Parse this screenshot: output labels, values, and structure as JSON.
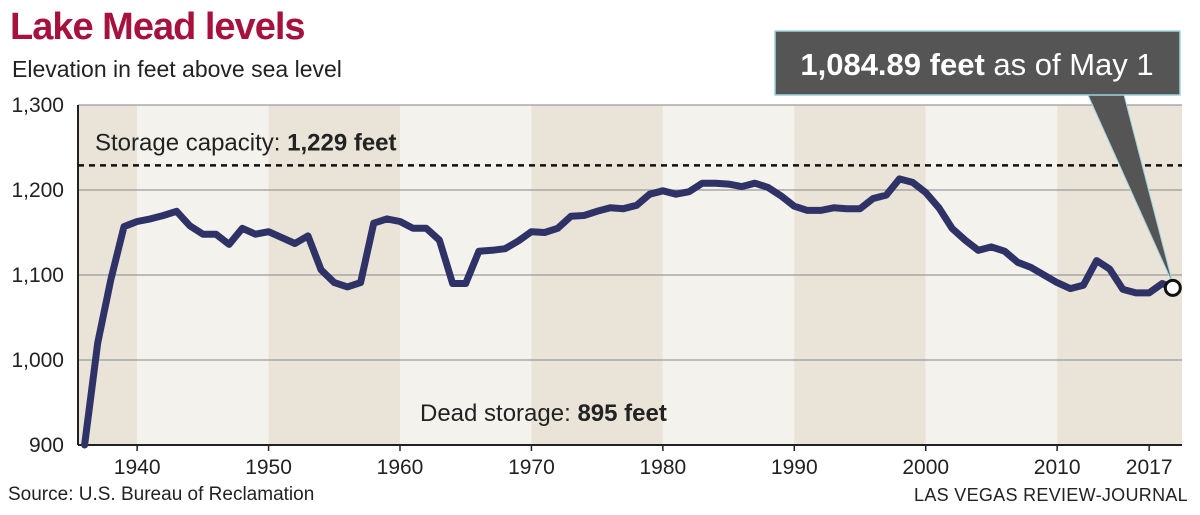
{
  "title": "Lake Mead levels",
  "subtitle": "Elevation in feet above sea level",
  "source": "Source: U.S. Bureau of Reclamation",
  "credit": "LAS VEGAS REVIEW-JOURNAL",
  "colors": {
    "title": "#a6123d",
    "line": "#2e3266",
    "band_light": "#f4f2ec",
    "band_dark": "#e9e4d7",
    "callout": "#555555"
  },
  "chart_data": {
    "type": "line",
    "title": "Lake Mead levels",
    "subtitle": "Elevation in feet above sea level",
    "xlabel": "",
    "ylabel": "",
    "xlim": [
      1935.5,
      2019.5
    ],
    "ylim": [
      900,
      1300
    ],
    "x_ticks": [
      1940,
      1950,
      1960,
      1970,
      1980,
      1990,
      2000,
      2010,
      2017
    ],
    "y_ticks": [
      900,
      1000,
      1100,
      1200,
      1300
    ],
    "x_tick_labels": [
      "1940",
      "1950",
      "1960",
      "1970",
      "1980",
      "1990",
      "2000",
      "2010",
      "2017"
    ],
    "y_tick_labels": [
      "900",
      "1,000",
      "1,100",
      "1,200",
      "1,300"
    ],
    "grid": true,
    "series": [
      {
        "x": [
          1936,
          1937,
          1938,
          1939,
          1940,
          1941,
          1942,
          1943,
          1944,
          1945,
          1946,
          1947,
          1948,
          1949,
          1950,
          1951,
          1952,
          1953,
          1954,
          1955,
          1956,
          1957,
          1958,
          1959,
          1960,
          1961,
          1962,
          1963,
          1964,
          1965,
          1966,
          1967,
          1968,
          1969,
          1970,
          1971,
          1972,
          1973,
          1974,
          1975,
          1976,
          1977,
          1978,
          1979,
          1980,
          1981,
          1982,
          1983,
          1984,
          1985,
          1986,
          1987,
          1988,
          1989,
          1990,
          1991,
          1992,
          1993,
          1994,
          1995,
          1996,
          1997,
          1998,
          1999,
          2000,
          2001,
          2002,
          2003,
          2004,
          2005,
          2006,
          2007,
          2008,
          2009,
          2010,
          2011,
          2012,
          2013,
          2014,
          2015,
          2016,
          2017,
          2018
        ],
        "y": [
          898,
          1020,
          1095,
          1157,
          1163,
          1166,
          1170,
          1175,
          1158,
          1148,
          1148,
          1136,
          1155,
          1148,
          1151,
          1144,
          1137,
          1146,
          1106,
          1091,
          1086,
          1091,
          1161,
          1166,
          1163,
          1155,
          1155,
          1141,
          1090,
          1090,
          1128,
          1129,
          1131,
          1140,
          1151,
          1150,
          1155,
          1169,
          1170,
          1175,
          1179,
          1178,
          1182,
          1195,
          1199,
          1195,
          1198,
          1208,
          1208,
          1207,
          1204,
          1208,
          1203,
          1193,
          1181,
          1176,
          1176,
          1179,
          1178,
          1178,
          1190,
          1194,
          1213,
          1209,
          1197,
          1179,
          1155,
          1141,
          1129,
          1133,
          1128,
          1115,
          1109,
          1100,
          1091,
          1084,
          1088,
          1117,
          1107,
          1083,
          1079,
          1079,
          1090
        ]
      }
    ],
    "endpoint": {
      "x": 2018.8,
      "y": 1084.89
    },
    "callout": {
      "value": "1,084.89 feet",
      "rest": "as of May 1"
    },
    "reference_lines": [
      {
        "label": "Storage capacity:",
        "value_label": "1,229 feet",
        "y": 1229,
        "style": "dashed"
      },
      {
        "label": "Dead storage:",
        "value_label": "895 feet",
        "y": 895,
        "style": "none"
      }
    ]
  }
}
